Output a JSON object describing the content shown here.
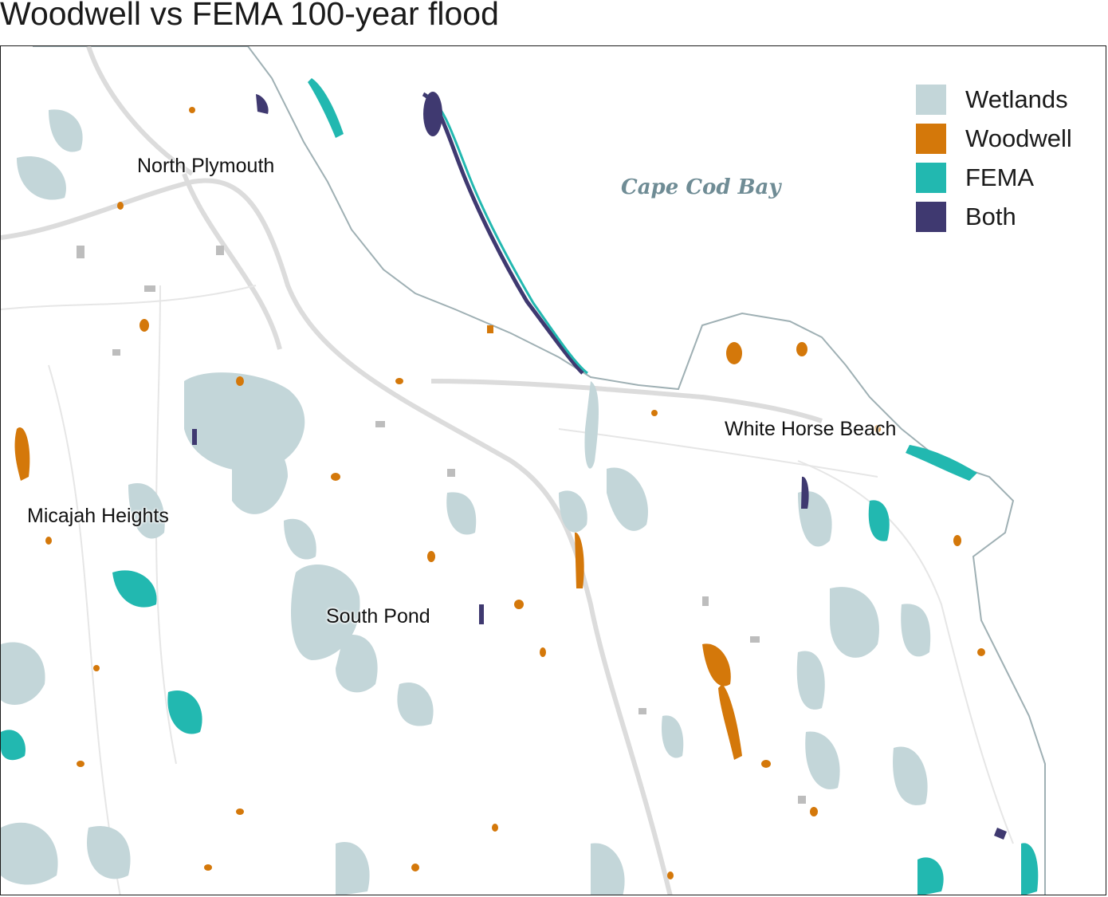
{
  "title": "Woodwell vs FEMA 100-year flood",
  "legend": {
    "items": [
      {
        "label": "Wetlands",
        "color": "#c3d6d9"
      },
      {
        "label": "Woodwell",
        "color": "#d4780a"
      },
      {
        "label": "FEMA",
        "color": "#22b8b0"
      },
      {
        "label": "Both",
        "color": "#3f3970"
      }
    ]
  },
  "labels": {
    "north_plymouth": "North Plymouth",
    "cape_cod_bay": "Cape Cod Bay",
    "white_horse_beach": "White Horse Beach",
    "micajah_heights": "Micajah Heights",
    "south_pond": "South Pond"
  },
  "colors": {
    "wetlands": "#c3d6d9",
    "woodwell": "#d4780a",
    "fema": "#22b8b0",
    "both": "#3f3970",
    "roads": "#d9d9d9",
    "buildings": "#b3b3b3"
  }
}
